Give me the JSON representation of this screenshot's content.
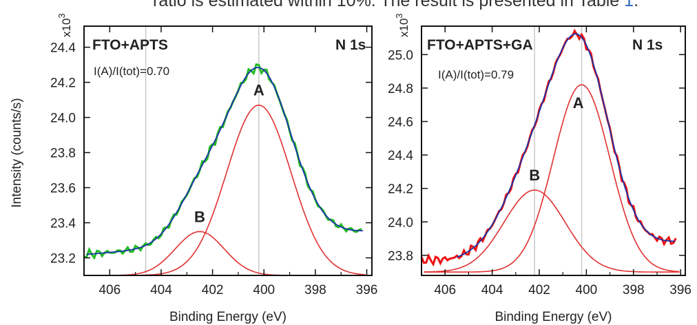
{
  "caption": {
    "prefix": "ratio is estimated within 10%. The result is presented in Table ",
    "ref": "1",
    "suffix": "."
  },
  "chart_data": [
    {
      "type": "line",
      "title": "FTO+APTS",
      "core_level": "N 1s",
      "annotation": "I(A)/I(tot)=0.70",
      "xlabel": "Binding Energy (eV)",
      "ylabel": "Intensity (counts/s)",
      "y_exponent": "x10",
      "y_exponent_power": "3",
      "xlim": [
        407,
        395.8
      ],
      "ylim": [
        23.1,
        24.52
      ],
      "x_ticks": [
        406,
        404,
        402,
        400,
        398,
        396
      ],
      "x_tick_labels": [
        "406",
        "404",
        "402",
        "400",
        "398",
        "396"
      ],
      "y_ticks": [
        23.2,
        23.4,
        23.6,
        23.8,
        24.0,
        24.2,
        24.4
      ],
      "y_tick_labels": [
        "23.2",
        "23.4",
        "23.6",
        "23.8",
        "24.0",
        "24.2",
        "24.4"
      ],
      "vertical_lines": [
        404.6,
        400.2
      ],
      "background": {
        "x_start": 406.9,
        "x_end": 396.1,
        "y_start": 23.22,
        "y_end": 23.35
      },
      "peaks": [
        {
          "label": "A",
          "center": 400.2,
          "height": 0.97,
          "sigma": 1.25,
          "base": 23.1
        },
        {
          "label": "B",
          "center": 402.5,
          "height": 0.25,
          "sigma": 0.95,
          "base": 23.1
        }
      ],
      "series": [
        {
          "role": "data",
          "color": "#22bb22",
          "x_start": 407,
          "x_end": 396.1,
          "step": 0.1,
          "noise": 0.025
        },
        {
          "role": "fit",
          "color": "#1a33a8"
        },
        {
          "role": "components",
          "color": "#e03030"
        }
      ],
      "colors": {
        "data": "#22bb22",
        "fit": "#1a33a8",
        "components": "#e03030"
      }
    },
    {
      "type": "line",
      "title": "FTO+APTS+GA",
      "core_level": "N 1s",
      "annotation": "I(A)/I(tot)=0.79",
      "xlabel": "Binding Energy (eV)",
      "ylabel": "",
      "y_exponent": "x10",
      "y_exponent_power": "3",
      "xlim": [
        407,
        395.8
      ],
      "ylim": [
        23.68,
        25.17
      ],
      "x_ticks": [
        406,
        404,
        402,
        400,
        398,
        396
      ],
      "x_tick_labels": [
        "406",
        "404",
        "402",
        "400",
        "398",
        "396"
      ],
      "y_ticks": [
        23.8,
        24.0,
        24.2,
        24.4,
        24.6,
        24.8,
        25.0
      ],
      "y_tick_labels": [
        "23.8",
        "24.0",
        "24.2",
        "24.4",
        "24.6",
        "24.8",
        "25.0"
      ],
      "vertical_lines": [
        402.2,
        400.2
      ],
      "background": {
        "x_start": 405.5,
        "x_end": 396.2,
        "y_start": 23.77,
        "y_end": 23.88
      },
      "peaks": [
        {
          "label": "A",
          "center": 400.2,
          "height": 1.12,
          "sigma": 1.2,
          "base": 23.7
        },
        {
          "label": "B",
          "center": 402.2,
          "height": 0.49,
          "sigma": 1.3,
          "base": 23.7
        }
      ],
      "series": [
        {
          "role": "data",
          "color": "#ee1111",
          "x_start": 407,
          "x_end": 396.1,
          "step": 0.1,
          "noise": 0.025
        },
        {
          "role": "fit",
          "color": "#1a33a8"
        },
        {
          "role": "components",
          "color": "#e03030"
        }
      ],
      "colors": {
        "data": "#ee1111",
        "fit": "#1a33a8",
        "components": "#e03030"
      }
    }
  ]
}
